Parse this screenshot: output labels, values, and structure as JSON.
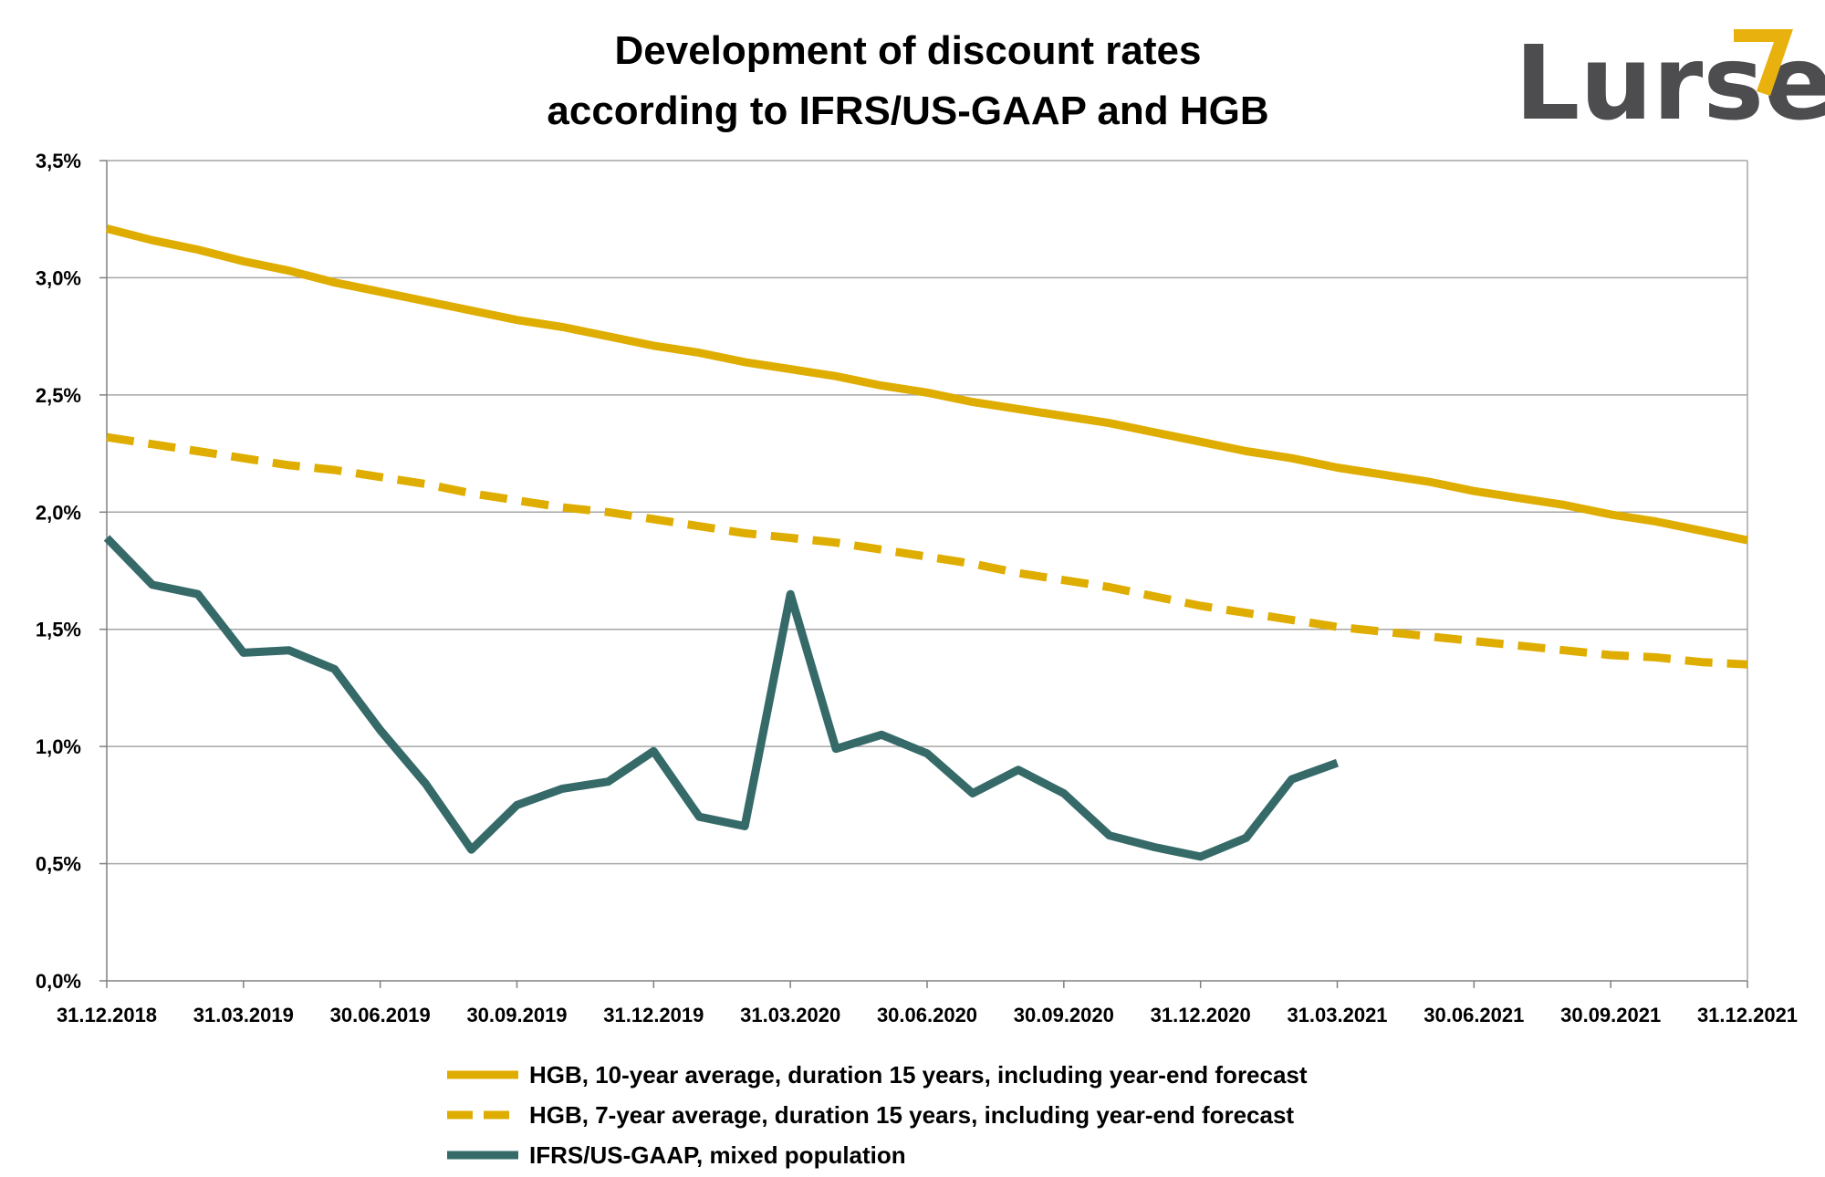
{
  "title_line1": "Development of discount rates",
  "title_line2": "according to IFRS/US-GAAP and HGB",
  "logo": {
    "text": "Lurse",
    "text_color": "#4d4d4f",
    "mark_color": "#e8b10e"
  },
  "colors": {
    "hgb": "#dfad00",
    "ifrs": "#356a69",
    "grid": "#a6a6a6",
    "axis": "#808080"
  },
  "chart_data": {
    "type": "line",
    "title": "Development of discount rates according to IFRS/US-GAAP and HGB",
    "xlabel": "",
    "ylabel": "",
    "ylim": [
      0,
      3.5
    ],
    "grid": true,
    "legend_position": "bottom",
    "y_ticks": [
      "0,0%",
      "0,5%",
      "1,0%",
      "1,5%",
      "2,0%",
      "2,5%",
      "3,0%",
      "3,5%"
    ],
    "y_tick_values": [
      0,
      0.5,
      1.0,
      1.5,
      2.0,
      2.5,
      3.0,
      3.5
    ],
    "x_ticks": [
      "31.12.2018",
      "31.03.2019",
      "30.06.2019",
      "30.09.2019",
      "31.12.2019",
      "31.03.2020",
      "30.06.2020",
      "30.09.2020",
      "31.12.2020",
      "31.03.2021",
      "30.06.2021",
      "30.09.2021",
      "31.12.2021"
    ],
    "x_months": [
      "12/2018",
      "01/2019",
      "02/2019",
      "03/2019",
      "04/2019",
      "05/2019",
      "06/2019",
      "07/2019",
      "08/2019",
      "09/2019",
      "10/2019",
      "11/2019",
      "12/2019",
      "01/2020",
      "02/2020",
      "03/2020",
      "04/2020",
      "05/2020",
      "06/2020",
      "07/2020",
      "08/2020",
      "09/2020",
      "10/2020",
      "11/2020",
      "12/2020",
      "01/2021",
      "02/2021",
      "03/2021",
      "04/2021",
      "05/2021",
      "06/2021",
      "07/2021",
      "08/2021",
      "09/2021",
      "10/2021",
      "11/2021",
      "12/2021"
    ],
    "series": [
      {
        "name": "HGB, 10-year average, duration 15 years, including year-end forecast",
        "style": "solid",
        "values": [
          3.21,
          3.16,
          3.12,
          3.07,
          3.03,
          2.98,
          2.94,
          2.9,
          2.86,
          2.82,
          2.79,
          2.75,
          2.71,
          2.68,
          2.64,
          2.61,
          2.58,
          2.54,
          2.51,
          2.47,
          2.44,
          2.41,
          2.38,
          2.34,
          2.3,
          2.26,
          2.23,
          2.19,
          2.16,
          2.13,
          2.09,
          2.06,
          2.03,
          1.99,
          1.96,
          1.92,
          1.88
        ]
      },
      {
        "name": "HGB, 7-year average, duration 15 years, including year-end forecast",
        "style": "dashed",
        "values": [
          2.32,
          2.29,
          2.26,
          2.23,
          2.2,
          2.18,
          2.15,
          2.12,
          2.08,
          2.05,
          2.02,
          2.0,
          1.97,
          1.94,
          1.91,
          1.89,
          1.87,
          1.84,
          1.81,
          1.78,
          1.74,
          1.71,
          1.68,
          1.64,
          1.6,
          1.57,
          1.54,
          1.51,
          1.49,
          1.47,
          1.45,
          1.43,
          1.41,
          1.39,
          1.38,
          1.36,
          1.35
        ]
      },
      {
        "name": "IFRS/US-GAAP, mixed population",
        "style": "solid",
        "values": [
          1.89,
          1.69,
          1.65,
          1.4,
          1.41,
          1.33,
          1.07,
          0.84,
          0.56,
          0.75,
          0.82,
          0.85,
          0.98,
          0.7,
          0.66,
          1.65,
          0.99,
          1.05,
          0.97,
          0.8,
          0.9,
          0.8,
          0.62,
          0.57,
          0.53,
          0.61,
          0.86,
          0.93
        ]
      }
    ]
  }
}
